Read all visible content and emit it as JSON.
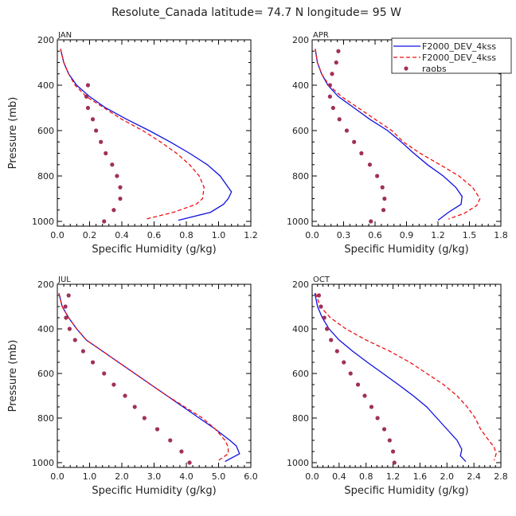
{
  "title": "Resolute_Canada   latitude= 74.7 N longitude= 95 W",
  "colors": {
    "model1": "#1010e0",
    "model2": "#ee1111",
    "obs": "#a0305a",
    "axis": "#000000"
  },
  "chart_data": [
    {
      "type": "line",
      "panel": "JAN",
      "xlabel": "Specific Humidity (g/kg)",
      "ylabel": "Pressure (mb)",
      "xlim": [
        0,
        1.2
      ],
      "ylim": [
        1000,
        200
      ],
      "xticks": [
        0,
        0.2,
        0.4,
        0.6,
        0.8,
        1.0,
        1.2
      ],
      "xtick_labels": [
        "0.0",
        "0.2",
        "0.4",
        "0.6",
        "0.8",
        "1.0",
        "1.2"
      ],
      "yticks": [
        200,
        400,
        600,
        800,
        1000
      ],
      "series": [
        {
          "name": "F2000_DEV_4kss",
          "style": "solid",
          "points": [
            [
              0.02,
              240
            ],
            [
              0.04,
              300
            ],
            [
              0.07,
              350
            ],
            [
              0.12,
              400
            ],
            [
              0.2,
              450
            ],
            [
              0.3,
              500
            ],
            [
              0.43,
              550
            ],
            [
              0.57,
              600
            ],
            [
              0.7,
              650
            ],
            [
              0.82,
              700
            ],
            [
              0.93,
              750
            ],
            [
              1.01,
              800
            ],
            [
              1.06,
              850
            ],
            [
              1.08,
              870
            ],
            [
              1.06,
              900
            ],
            [
              1.03,
              925
            ],
            [
              0.95,
              960
            ],
            [
              0.75,
              995
            ]
          ]
        },
        {
          "name": "F2000_DEV_4kss",
          "style": "dashed",
          "points": [
            [
              0.02,
              240
            ],
            [
              0.04,
              300
            ],
            [
              0.07,
              350
            ],
            [
              0.11,
              400
            ],
            [
              0.18,
              450
            ],
            [
              0.29,
              500
            ],
            [
              0.4,
              550
            ],
            [
              0.53,
              600
            ],
            [
              0.64,
              650
            ],
            [
              0.74,
              700
            ],
            [
              0.82,
              750
            ],
            [
              0.88,
              800
            ],
            [
              0.91,
              850
            ],
            [
              0.9,
              900
            ],
            [
              0.86,
              925
            ],
            [
              0.72,
              960
            ],
            [
              0.55,
              990
            ]
          ]
        },
        {
          "name": "raobs",
          "style": "dots",
          "points": [
            [
              0.19,
              400
            ],
            [
              0.18,
              450
            ],
            [
              0.19,
              500
            ],
            [
              0.22,
              550
            ],
            [
              0.24,
              600
            ],
            [
              0.27,
              650
            ],
            [
              0.3,
              700
            ],
            [
              0.34,
              750
            ],
            [
              0.37,
              800
            ],
            [
              0.39,
              850
            ],
            [
              0.39,
              900
            ],
            [
              0.35,
              950
            ],
            [
              0.29,
              1000
            ]
          ]
        }
      ]
    },
    {
      "type": "line",
      "panel": "APR",
      "xlabel": "Specific Humidity (g/kg)",
      "ylabel": "Pressure (mb)",
      "xlim": [
        0,
        1.8
      ],
      "ylim": [
        1000,
        200
      ],
      "xticks": [
        0,
        0.3,
        0.6,
        0.9,
        1.2,
        1.5,
        1.8
      ],
      "xtick_labels": [
        "0.0",
        "0.3",
        "0.6",
        "0.9",
        "1.2",
        "1.5",
        "1.8"
      ],
      "yticks": [
        200,
        400,
        600,
        800,
        1000
      ],
      "series": [
        {
          "name": "F2000_DEV_4kss",
          "style": "solid",
          "points": [
            [
              0.03,
              240
            ],
            [
              0.05,
              300
            ],
            [
              0.09,
              350
            ],
            [
              0.15,
              400
            ],
            [
              0.25,
              450
            ],
            [
              0.4,
              500
            ],
            [
              0.55,
              550
            ],
            [
              0.72,
              600
            ],
            [
              0.85,
              650
            ],
            [
              0.97,
              700
            ],
            [
              1.1,
              750
            ],
            [
              1.25,
              800
            ],
            [
              1.37,
              850
            ],
            [
              1.43,
              890
            ],
            [
              1.42,
              925
            ],
            [
              1.3,
              960
            ],
            [
              1.2,
              995
            ]
          ]
        },
        {
          "name": "F2000_DEV_4kss",
          "style": "dashed",
          "points": [
            [
              0.03,
              240
            ],
            [
              0.05,
              300
            ],
            [
              0.09,
              350
            ],
            [
              0.16,
              400
            ],
            [
              0.28,
              450
            ],
            [
              0.44,
              500
            ],
            [
              0.6,
              550
            ],
            [
              0.76,
              600
            ],
            [
              0.87,
              650
            ],
            [
              1.03,
              700
            ],
            [
              1.22,
              750
            ],
            [
              1.4,
              800
            ],
            [
              1.53,
              850
            ],
            [
              1.6,
              900
            ],
            [
              1.57,
              930
            ],
            [
              1.45,
              965
            ],
            [
              1.3,
              990
            ]
          ]
        },
        {
          "name": "raobs",
          "style": "dots",
          "points": [
            [
              0.25,
              250
            ],
            [
              0.23,
              300
            ],
            [
              0.19,
              350
            ],
            [
              0.17,
              400
            ],
            [
              0.17,
              450
            ],
            [
              0.2,
              500
            ],
            [
              0.26,
              550
            ],
            [
              0.33,
              600
            ],
            [
              0.4,
              650
            ],
            [
              0.47,
              700
            ],
            [
              0.55,
              750
            ],
            [
              0.62,
              800
            ],
            [
              0.67,
              850
            ],
            [
              0.69,
              900
            ],
            [
              0.68,
              950
            ],
            [
              0.56,
              1000
            ]
          ]
        }
      ]
    },
    {
      "type": "line",
      "panel": "JUL",
      "xlabel": "Specific Humidity (g/kg)",
      "ylabel": "Pressure (mb)",
      "xlim": [
        0,
        6.0
      ],
      "ylim": [
        1000,
        200
      ],
      "xticks": [
        0,
        1,
        2,
        3,
        4,
        5,
        6
      ],
      "xtick_labels": [
        "0.0",
        "1.0",
        "2.0",
        "3.0",
        "4.0",
        "5.0",
        "6.0"
      ],
      "yticks": [
        200,
        400,
        600,
        800,
        1000
      ],
      "series": [
        {
          "name": "F2000_DEV_4kss",
          "style": "solid",
          "points": [
            [
              0.05,
              240
            ],
            [
              0.15,
              300
            ],
            [
              0.35,
              350
            ],
            [
              0.6,
              400
            ],
            [
              0.9,
              450
            ],
            [
              1.4,
              500
            ],
            [
              1.9,
              550
            ],
            [
              2.4,
              600
            ],
            [
              2.9,
              650
            ],
            [
              3.4,
              700
            ],
            [
              3.9,
              750
            ],
            [
              4.4,
              800
            ],
            [
              4.9,
              850
            ],
            [
              5.35,
              900
            ],
            [
              5.55,
              925
            ],
            [
              5.65,
              960
            ],
            [
              5.2,
              995
            ]
          ]
        },
        {
          "name": "F2000_DEV_4kss",
          "style": "dashed",
          "points": [
            [
              0.05,
              240
            ],
            [
              0.15,
              300
            ],
            [
              0.35,
              350
            ],
            [
              0.6,
              400
            ],
            [
              0.9,
              450
            ],
            [
              1.4,
              500
            ],
            [
              1.9,
              550
            ],
            [
              2.4,
              600
            ],
            [
              2.9,
              650
            ],
            [
              3.4,
              700
            ],
            [
              3.95,
              750
            ],
            [
              4.5,
              800
            ],
            [
              4.9,
              850
            ],
            [
              5.2,
              900
            ],
            [
              5.3,
              930
            ],
            [
              5.3,
              960
            ],
            [
              5.0,
              990
            ]
          ]
        },
        {
          "name": "raobs",
          "style": "dots",
          "points": [
            [
              0.35,
              250
            ],
            [
              0.25,
              300
            ],
            [
              0.27,
              350
            ],
            [
              0.38,
              400
            ],
            [
              0.55,
              450
            ],
            [
              0.8,
              500
            ],
            [
              1.1,
              550
            ],
            [
              1.45,
              600
            ],
            [
              1.75,
              650
            ],
            [
              2.1,
              700
            ],
            [
              2.4,
              750
            ],
            [
              2.7,
              800
            ],
            [
              3.1,
              850
            ],
            [
              3.5,
              900
            ],
            [
              3.85,
              950
            ],
            [
              4.1,
              1000
            ]
          ]
        }
      ]
    },
    {
      "type": "line",
      "panel": "OCT",
      "xlabel": "Specific Humidity (g/kg)",
      "ylabel": "Pressure (mb)",
      "xlim": [
        0,
        2.8
      ],
      "ylim": [
        1000,
        200
      ],
      "xticks": [
        0,
        0.4,
        0.8,
        1.2,
        1.6,
        2.0,
        2.4,
        2.8
      ],
      "xtick_labels": [
        "0.0",
        "0.4",
        "0.8",
        "1.2",
        "1.6",
        "2.0",
        "2.4",
        "2.8"
      ],
      "yticks": [
        200,
        400,
        600,
        800,
        1000
      ],
      "series": [
        {
          "name": "F2000_DEV_4kss",
          "style": "solid",
          "points": [
            [
              0.04,
              240
            ],
            [
              0.08,
              300
            ],
            [
              0.15,
              350
            ],
            [
              0.25,
              400
            ],
            [
              0.4,
              450
            ],
            [
              0.6,
              500
            ],
            [
              0.82,
              550
            ],
            [
              1.05,
              600
            ],
            [
              1.28,
              650
            ],
            [
              1.5,
              700
            ],
            [
              1.7,
              750
            ],
            [
              1.85,
              800
            ],
            [
              2.0,
              850
            ],
            [
              2.15,
              900
            ],
            [
              2.22,
              940
            ],
            [
              2.2,
              970
            ],
            [
              2.28,
              995
            ]
          ]
        },
        {
          "name": "F2000_DEV_4kss",
          "style": "dashed",
          "points": [
            [
              0.05,
              240
            ],
            [
              0.12,
              300
            ],
            [
              0.27,
              350
            ],
            [
              0.5,
              400
            ],
            [
              0.8,
              450
            ],
            [
              1.15,
              500
            ],
            [
              1.45,
              550
            ],
            [
              1.7,
              600
            ],
            [
              1.95,
              650
            ],
            [
              2.15,
              700
            ],
            [
              2.3,
              750
            ],
            [
              2.42,
              800
            ],
            [
              2.5,
              850
            ],
            [
              2.62,
              900
            ],
            [
              2.7,
              930
            ],
            [
              2.73,
              960
            ],
            [
              2.7,
              990
            ]
          ]
        },
        {
          "name": "raobs",
          "style": "dots",
          "points": [
            [
              0.1,
              250
            ],
            [
              0.13,
              300
            ],
            [
              0.18,
              350
            ],
            [
              0.22,
              400
            ],
            [
              0.28,
              450
            ],
            [
              0.37,
              500
            ],
            [
              0.47,
              550
            ],
            [
              0.57,
              600
            ],
            [
              0.68,
              650
            ],
            [
              0.78,
              700
            ],
            [
              0.88,
              750
            ],
            [
              0.97,
              800
            ],
            [
              1.07,
              850
            ],
            [
              1.15,
              900
            ],
            [
              1.2,
              950
            ],
            [
              1.22,
              1000
            ]
          ]
        }
      ]
    }
  ],
  "legend": {
    "placement": "top-right",
    "entries": [
      {
        "label": "F2000_DEV_4kss",
        "style": "solid"
      },
      {
        "label": "F2000_DEV_4kss",
        "style": "dashed"
      },
      {
        "label": "raobs",
        "style": "dots"
      }
    ]
  }
}
